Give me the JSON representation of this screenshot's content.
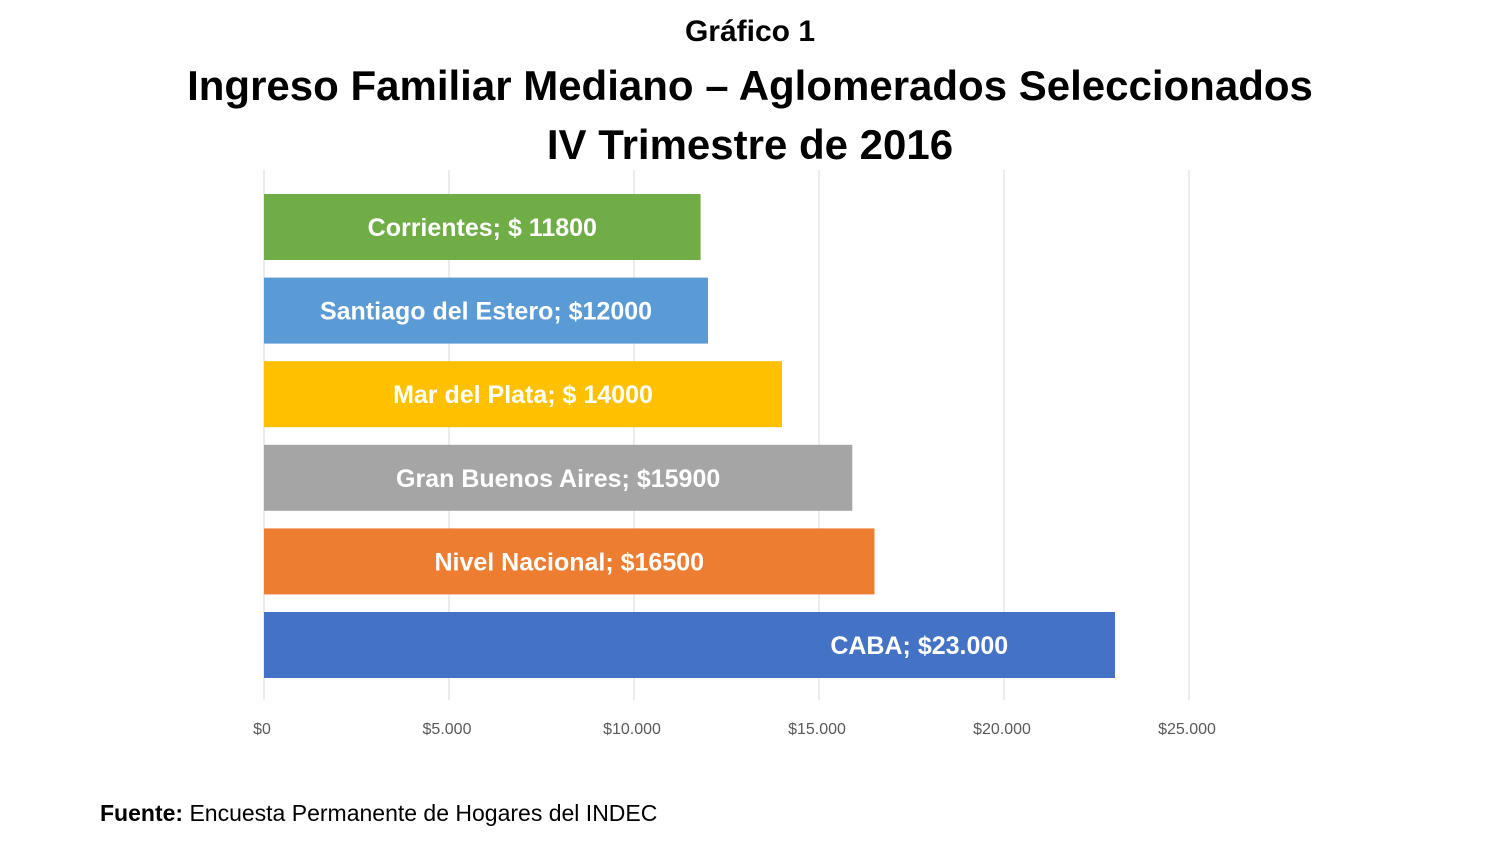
{
  "header": {
    "kicker": "Gráfico 1",
    "title": "Ingreso Familiar Mediano – Aglomerados Seleccionados",
    "subtitle": "IV Trimestre de 2016"
  },
  "source": {
    "label": "Fuente:",
    "text": " Encuesta Permanente de Hogares del INDEC"
  },
  "chart_data": {
    "type": "bar",
    "orientation": "horizontal",
    "title": "Ingreso Familiar Mediano – Aglomerados Seleccionados",
    "subtitle": "IV Trimestre de 2016",
    "xlabel": "",
    "ylabel": "",
    "xlim": [
      0,
      25000
    ],
    "grid": true,
    "legend": "none",
    "ticks": [
      {
        "value": 0,
        "label": "$0"
      },
      {
        "value": 5000,
        "label": "$5.000"
      },
      {
        "value": 10000,
        "label": "$10.000"
      },
      {
        "value": 15000,
        "label": "$15.000"
      },
      {
        "value": 20000,
        "label": "$20.000"
      },
      {
        "value": 25000,
        "label": "$25.000"
      }
    ],
    "bars": [
      {
        "category": "Corrientes",
        "value": 11800,
        "label": "Corrientes; $ 11800",
        "color": "#70ad47"
      },
      {
        "category": "Santiago del Estero",
        "value": 12000,
        "label": "Santiago del Estero; $12000",
        "color": "#5b9bd5"
      },
      {
        "category": "Mar del Plata",
        "value": 14000,
        "label": "Mar del Plata; $ 14000",
        "color": "#ffc000"
      },
      {
        "category": "Gran Buenos Aires",
        "value": 15900,
        "label": "Gran Buenos Aires; $15900",
        "color": "#a5a5a5"
      },
      {
        "category": "Nivel Nacional",
        "value": 16500,
        "label": "Nivel Nacional; $16500",
        "color": "#ed7d31"
      },
      {
        "category": "CABA",
        "value": 23000,
        "label": "CABA; $23.000",
        "color": "#4472c4"
      }
    ]
  }
}
